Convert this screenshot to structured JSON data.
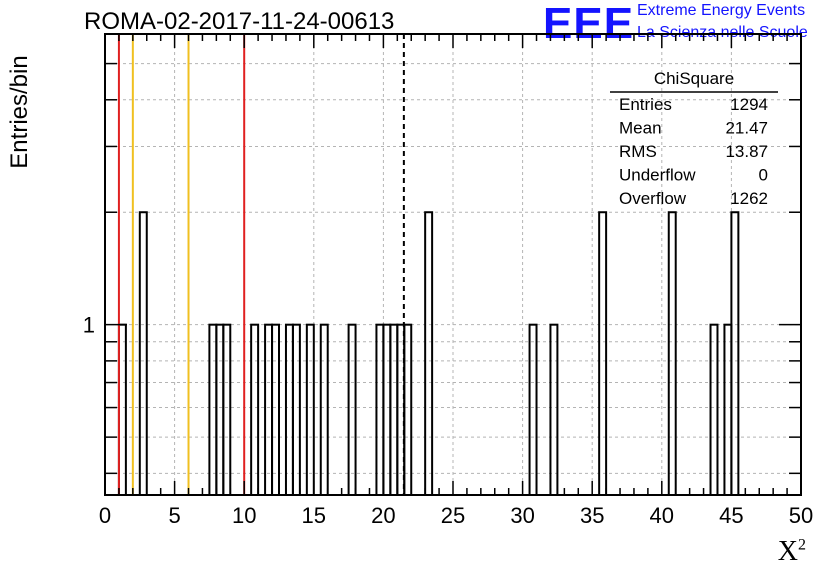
{
  "header": {
    "title": "ROMA-02-2017-11-24-00613",
    "logo_mark": "EEE",
    "logo_line1": "Extreme Energy Events",
    "logo_line2": "La Scienza nelle Scuole"
  },
  "stats_box": {
    "title": "ChiSquare",
    "rows": [
      {
        "label": "Entries",
        "value": "1294"
      },
      {
        "label": "Mean",
        "value": "21.47"
      },
      {
        "label": "RMS",
        "value": "13.87"
      },
      {
        "label": "Underflow",
        "value": "0"
      },
      {
        "label": "Overflow",
        "value": "1262"
      }
    ]
  },
  "chart_data": {
    "type": "histogram",
    "title": "ROMA-02-2017-11-24-00613",
    "xlabel": "X²",
    "ylabel": "Entries/bin",
    "xlim": [
      0,
      50
    ],
    "ylog": true,
    "ylim": [
      0.35,
      6
    ],
    "grid": true,
    "bin_width": 0.5,
    "x_ticks": [
      "0",
      "5",
      "10",
      "15",
      "20",
      "25",
      "30",
      "35",
      "40",
      "45",
      "50"
    ],
    "y_ticks": [
      "1"
    ],
    "bins": [
      {
        "x": 1.0,
        "count": 1
      },
      {
        "x": 2.5,
        "count": 2
      },
      {
        "x": 7.5,
        "count": 1
      },
      {
        "x": 8.0,
        "count": 1
      },
      {
        "x": 8.5,
        "count": 1
      },
      {
        "x": 10.5,
        "count": 1
      },
      {
        "x": 11.5,
        "count": 1
      },
      {
        "x": 12.0,
        "count": 1
      },
      {
        "x": 13.0,
        "count": 1
      },
      {
        "x": 13.5,
        "count": 1
      },
      {
        "x": 14.5,
        "count": 1
      },
      {
        "x": 15.5,
        "count": 1
      },
      {
        "x": 17.5,
        "count": 1
      },
      {
        "x": 19.5,
        "count": 1
      },
      {
        "x": 20.0,
        "count": 1
      },
      {
        "x": 20.5,
        "count": 1
      },
      {
        "x": 21.0,
        "count": 1
      },
      {
        "x": 21.5,
        "count": 1
      },
      {
        "x": 23.0,
        "count": 2
      },
      {
        "x": 30.5,
        "count": 1
      },
      {
        "x": 32.0,
        "count": 1
      },
      {
        "x": 35.5,
        "count": 2
      },
      {
        "x": 40.5,
        "count": 2
      },
      {
        "x": 43.5,
        "count": 1
      },
      {
        "x": 44.5,
        "count": 1
      },
      {
        "x": 45.0,
        "count": 2
      }
    ],
    "reference_lines": [
      {
        "x": 1.0,
        "color": "#e02020",
        "style": "solid"
      },
      {
        "x": 2.0,
        "color": "#f0c020",
        "style": "solid"
      },
      {
        "x": 6.0,
        "color": "#f0c020",
        "style": "solid"
      },
      {
        "x": 10.0,
        "color": "#e02020",
        "style": "solid"
      },
      {
        "x": 21.47,
        "color": "#000000",
        "style": "dashed"
      }
    ],
    "colors": {
      "histogram_line": "#000000",
      "grid": "#b4b4b4",
      "logo": "#1414ff"
    }
  }
}
